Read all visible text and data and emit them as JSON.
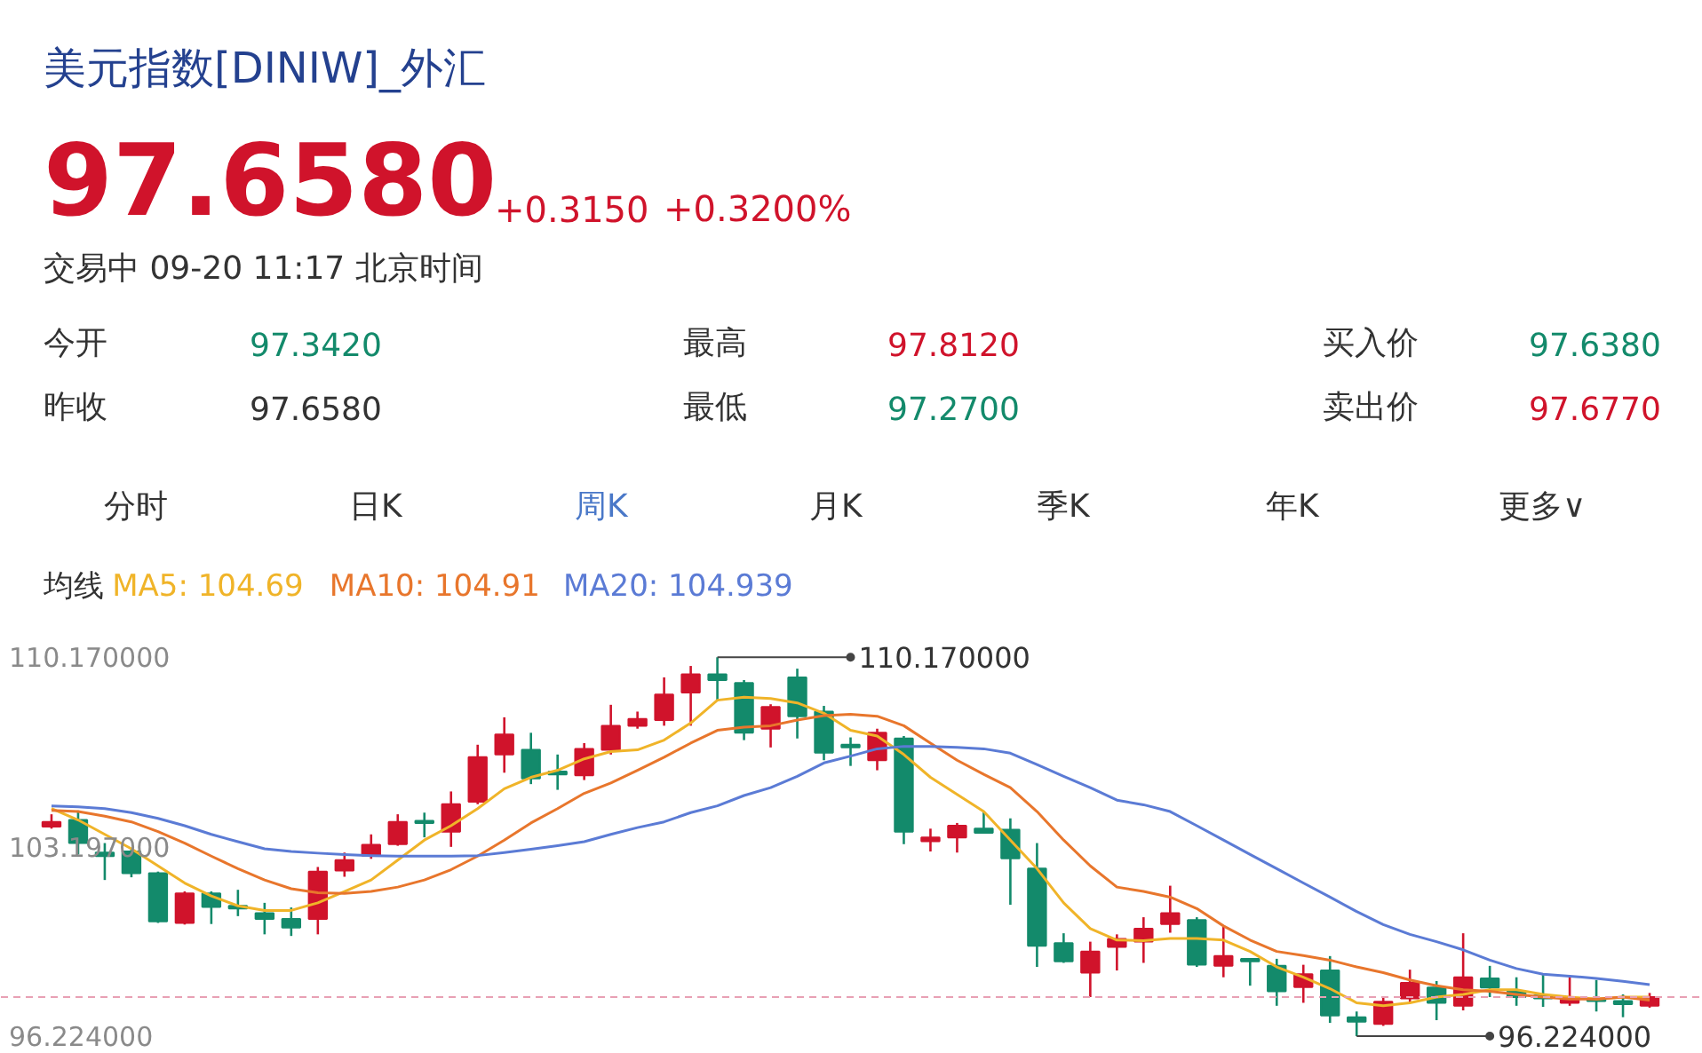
{
  "chart_data": {
    "type": "candlestick",
    "title": "美元指数[DINIW]_外汇",
    "annotations": [
      "97.6580",
      "+0.3150",
      "+0.3200%",
      "交易中 09-20 11:17 北京时间",
      "今开",
      "97.3420",
      "最高",
      "97.8120",
      "买入价",
      "97.6380",
      "昨收",
      "97.6580",
      "最低",
      "97.2700",
      "卖出价",
      "97.6770",
      "分时",
      "日K",
      "周K",
      "月K",
      "季K",
      "年K",
      "更多∨",
      "110.170000",
      "96.224000"
    ],
    "categories": [
      null,
      null,
      null,
      null,
      null,
      null,
      null,
      null,
      null,
      null,
      null,
      null,
      null,
      null,
      null,
      null,
      null,
      null,
      null,
      null,
      null,
      null,
      null,
      null,
      null,
      null,
      null,
      null,
      null,
      null,
      null,
      null,
      null,
      null,
      null,
      null,
      null,
      null,
      null,
      null,
      null,
      null,
      null,
      null,
      null,
      null,
      null,
      null,
      null,
      null,
      null,
      null,
      null,
      null,
      null,
      null,
      null,
      null,
      null,
      null,
      null
    ],
    "ohlc": [
      [
        103.94,
        104.39,
        103.86,
        104.11
      ],
      [
        104.18,
        104.53,
        102.91,
        103.33
      ],
      [
        102.98,
        103.33,
        101.97,
        102.85
      ],
      [
        103.02,
        103.12,
        102.07,
        102.22
      ],
      [
        102.22,
        102.28,
        100.39,
        100.45
      ],
      [
        100.39,
        101.55,
        100.33,
        101.48
      ],
      [
        101.48,
        101.55,
        100.35,
        100.98
      ],
      [
        101.02,
        101.61,
        100.64,
        100.92
      ],
      [
        100.75,
        101.13,
        99.97,
        100.54
      ],
      [
        100.54,
        100.96,
        99.91,
        100.22
      ],
      [
        100.54,
        102.45,
        99.97,
        102.28
      ],
      [
        102.32,
        102.98,
        102.09,
        102.7
      ],
      [
        102.87,
        103.65,
        102.75,
        103.27
      ],
      [
        103.29,
        104.39,
        103.23,
        104.11
      ],
      [
        104.15,
        104.45,
        103.54,
        104.07
      ],
      [
        103.75,
        105.23,
        103.19,
        104.76
      ],
      [
        104.85,
        106.95,
        104.76,
        106.49
      ],
      [
        106.59,
        107.96,
        105.92,
        107.33
      ],
      [
        106.76,
        107.39,
        105.5,
        105.71
      ],
      [
        105.96,
        106.59,
        105.29,
        105.86
      ],
      [
        105.82,
        107.01,
        105.65,
        106.8
      ],
      [
        106.76,
        108.42,
        106.59,
        107.65
      ],
      [
        107.65,
        108.17,
        107.54,
        107.9
      ],
      [
        107.86,
        109.43,
        107.65,
        108.8
      ],
      [
        108.87,
        109.85,
        107.65,
        109.54
      ],
      [
        109.54,
        110.17,
        108.55,
        109.33
      ],
      [
        109.22,
        109.33,
        107.12,
        107.39
      ],
      [
        107.54,
        108.44,
        106.85,
        108.34
      ],
      [
        109.43,
        109.75,
        107.18,
        108.0
      ],
      [
        108.17,
        108.38,
        106.38,
        106.66
      ],
      [
        106.95,
        107.22,
        106.17,
        106.85
      ],
      [
        106.38,
        107.54,
        106.01,
        107.39
      ],
      [
        107.18,
        107.27,
        103.29,
        103.75
      ],
      [
        103.4,
        103.86,
        103.02,
        103.54
      ],
      [
        103.54,
        104.07,
        102.98,
        103.97
      ],
      [
        103.86,
        104.49,
        103.71,
        103.71
      ],
      [
        103.82,
        104.24,
        101.06,
        102.77
      ],
      [
        102.39,
        103.33,
        98.77,
        99.55
      ],
      [
        99.65,
        100.01,
        98.92,
        98.98
      ],
      [
        98.56,
        99.7,
        97.66,
        99.34
      ],
      [
        99.51,
        99.97,
        98.64,
        99.8
      ],
      [
        99.7,
        100.6,
        98.92,
        100.18
      ],
      [
        100.35,
        101.76,
        100.03,
        100.75
      ],
      [
        100.5,
        100.6,
        98.77,
        98.85
      ],
      [
        98.81,
        100.28,
        98.39,
        99.17
      ],
      [
        99.07,
        99.07,
        98.08,
        98.98
      ],
      [
        98.81,
        99.07,
        97.34,
        97.87
      ],
      [
        98.03,
        98.85,
        97.45,
        98.5
      ],
      [
        98.64,
        99.17,
        96.71,
        96.98
      ],
      [
        96.92,
        97.13,
        96.224,
        96.75
      ],
      [
        96.67,
        97.66,
        96.6,
        97.49
      ],
      [
        97.61,
        98.67,
        97.45,
        98.18
      ],
      [
        98.01,
        98.25,
        96.81,
        97.45
      ],
      [
        97.34,
        100.01,
        97.17,
        98.39
      ],
      [
        98.35,
        98.81,
        97.66,
        98.01
      ],
      [
        97.87,
        98.39,
        97.34,
        97.66
      ],
      [
        97.72,
        98.5,
        97.3,
        97.61
      ],
      [
        97.45,
        98.39,
        97.34,
        97.59
      ],
      [
        97.59,
        98.29,
        97.13,
        97.51
      ],
      [
        97.51,
        97.76,
        96.92,
        97.4
      ],
      [
        97.342,
        97.812,
        97.27,
        97.658
      ]
    ],
    "series": [
      {
        "name": "MA5: 104.69",
        "type": "line",
        "color": "#f0b429",
        "values": [
          104.6,
          104.18,
          103.65,
          103.12,
          102.49,
          101.86,
          101.38,
          101.02,
          100.85,
          100.85,
          101.13,
          101.55,
          101.97,
          102.7,
          103.44,
          103.97,
          104.6,
          105.33,
          105.75,
          106.01,
          106.43,
          106.7,
          106.76,
          107.12,
          107.75,
          108.59,
          108.7,
          108.65,
          108.49,
          108.11,
          107.48,
          107.27,
          106.59,
          105.75,
          105.12,
          104.49,
          103.44,
          102.39,
          101.13,
          100.18,
          99.76,
          99.74,
          99.82,
          99.82,
          99.76,
          99.34,
          98.77,
          98.39,
          97.97,
          97.45,
          97.34,
          97.45,
          97.66,
          97.76,
          97.93,
          97.93,
          97.76,
          97.66,
          97.59,
          97.66,
          97.66
        ]
      },
      {
        "name": "MA10: 104.91",
        "type": "line",
        "color": "#e8762c",
        "values": [
          104.53,
          104.49,
          104.32,
          104.11,
          103.75,
          103.33,
          102.85,
          102.39,
          101.97,
          101.65,
          101.5,
          101.48,
          101.55,
          101.71,
          101.97,
          102.35,
          102.85,
          103.44,
          104.07,
          104.6,
          105.16,
          105.54,
          106.01,
          106.49,
          107.01,
          107.48,
          107.6,
          107.65,
          107.86,
          108.02,
          108.07,
          108.0,
          107.65,
          107.01,
          106.38,
          105.86,
          105.37,
          104.49,
          103.44,
          102.49,
          101.71,
          101.55,
          101.34,
          100.92,
          100.28,
          99.76,
          99.34,
          99.19,
          99.02,
          98.77,
          98.56,
          98.29,
          98.08,
          97.93,
          97.87,
          97.76,
          97.66,
          97.59,
          97.59,
          97.66,
          97.55
        ]
      },
      {
        "name": "MA20: 104.939",
        "type": "line",
        "color": "#5b7bd5",
        "values": [
          104.7,
          104.66,
          104.6,
          104.45,
          104.24,
          103.97,
          103.65,
          103.38,
          103.12,
          103.02,
          102.96,
          102.91,
          102.87,
          102.85,
          102.85,
          102.85,
          102.87,
          102.98,
          103.1,
          103.23,
          103.38,
          103.65,
          103.9,
          104.11,
          104.45,
          104.7,
          105.08,
          105.37,
          105.79,
          106.28,
          106.53,
          106.8,
          106.89,
          106.89,
          106.85,
          106.8,
          106.64,
          106.22,
          105.79,
          105.37,
          104.91,
          104.74,
          104.49,
          103.97,
          103.44,
          102.91,
          102.39,
          101.86,
          101.34,
          100.81,
          100.33,
          99.97,
          99.7,
          99.4,
          99.02,
          98.71,
          98.5,
          98.43,
          98.35,
          98.24,
          98.12
        ]
      }
    ],
    "legend_title": "均线",
    "legend": "top left",
    "ylim": [
      95.7,
      110.8
    ],
    "yticks": [
      {
        "value": 110.17,
        "label": "110.170000"
      },
      {
        "value": 103.197,
        "label": "103.197000"
      },
      {
        "value": 96.224,
        "label": "96.224000"
      }
    ],
    "ref_lines": [
      {
        "axis": "y",
        "value": 97.658,
        "color": "#e8a0b4",
        "line_style": "dashed"
      }
    ]
  }
}
